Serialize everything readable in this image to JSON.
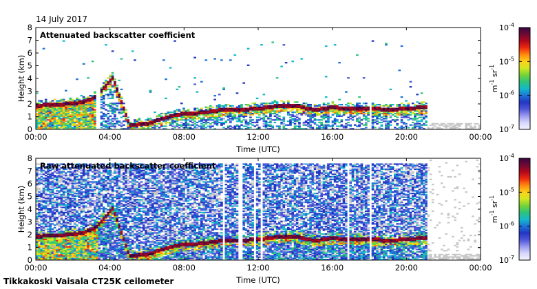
{
  "header": {
    "date": "14 July 2017"
  },
  "footer": {
    "station": "Tikkakoski Vaisala CT25K ceilometer"
  },
  "colors": {
    "noise": "#c8c8c8",
    "colorbar": [
      "#f4f4ff",
      "#d6d6fb",
      "#9a9af0",
      "#4d55d8",
      "#2436c4",
      "#1d74d6",
      "#14b9c9",
      "#2ec37a",
      "#74d338",
      "#d2e722",
      "#ffd21a",
      "#ff8a10",
      "#ee2a10",
      "#b0081c",
      "#6e0a35",
      "#3a0540"
    ]
  },
  "chart_data": [
    {
      "type": "heatmap",
      "title": "Attenuated backscatter coefficient",
      "xlabel": "Time (UTC)",
      "ylabel": "Height (km)",
      "xlim": [
        0,
        24
      ],
      "ylim": [
        0,
        8
      ],
      "xticks": [
        "00:00",
        "04:00",
        "08:00",
        "12:00",
        "16:00",
        "20:00",
        "00:00"
      ],
      "yticks": [
        "0",
        "1",
        "2",
        "3",
        "4",
        "5",
        "6",
        "7",
        "8"
      ],
      "colorbar": {
        "scale": "log",
        "range": [
          1e-07,
          0.0001
        ],
        "ticks": [
          "10",
          "10",
          "10",
          "10"
        ],
        "tick_exponents": [
          "-7",
          "-6",
          "-5",
          "-4"
        ],
        "label": "m",
        "label_exp1": "-1",
        "label_mid": " sr",
        "label_exp2": "-1"
      },
      "noise_floor": false,
      "layer_base_km": [
        [
          0.0,
          1.8
        ],
        [
          0.5,
          1.9
        ],
        [
          1.0,
          1.95
        ],
        [
          1.5,
          1.95
        ],
        [
          2.0,
          2.0
        ],
        [
          2.5,
          2.1
        ],
        [
          3.0,
          2.4
        ],
        [
          3.3,
          2.7
        ],
        [
          3.6,
          3.2
        ],
        [
          3.9,
          3.7
        ],
        [
          4.1,
          4.0
        ],
        [
          5.0,
          0.3
        ],
        [
          6.0,
          0.4
        ],
        [
          6.5,
          0.7
        ],
        [
          7.0,
          0.9
        ],
        [
          7.5,
          1.1
        ],
        [
          8.0,
          1.2
        ],
        [
          8.5,
          1.2
        ],
        [
          9.0,
          1.3
        ],
        [
          9.5,
          1.4
        ],
        [
          10.0,
          1.5
        ],
        [
          11.0,
          1.5
        ],
        [
          12.0,
          1.6
        ],
        [
          12.5,
          1.7
        ],
        [
          13.0,
          1.8
        ],
        [
          14.0,
          1.8
        ],
        [
          15.0,
          1.5
        ],
        [
          15.5,
          1.6
        ],
        [
          16.0,
          1.7
        ],
        [
          16.5,
          1.6
        ],
        [
          17.0,
          1.6
        ],
        [
          18.0,
          1.6
        ],
        [
          19.0,
          1.5
        ],
        [
          20.0,
          1.6
        ],
        [
          21.0,
          1.7
        ]
      ],
      "data_gaps_h": [
        [
          3.2,
          3.4
        ],
        [
          12.0,
          12.1
        ],
        [
          17.9,
          18.0
        ],
        [
          21.0,
          24.0
        ]
      ]
    },
    {
      "type": "heatmap",
      "title": "Raw attenuated backscatter coefficient",
      "xlabel": "Time (UTC)",
      "ylabel": "Height (km)",
      "xlim": [
        0,
        24
      ],
      "ylim": [
        0,
        8
      ],
      "xticks": [
        "00:00",
        "04:00",
        "08:00",
        "12:00",
        "16:00",
        "20:00",
        "00:00"
      ],
      "yticks": [
        "0",
        "1",
        "2",
        "3",
        "4",
        "5",
        "6",
        "7",
        "8"
      ],
      "colorbar": {
        "scale": "log",
        "range": [
          1e-07,
          0.0001
        ],
        "ticks": [
          "10",
          "10",
          "10",
          "10"
        ],
        "tick_exponents": [
          "-7",
          "-6",
          "-5",
          "-4"
        ],
        "label": "m",
        "label_exp1": "-1",
        "label_mid": " sr",
        "label_exp2": "-1"
      },
      "noise_floor": true,
      "layer_base_km": [
        [
          0.0,
          1.8
        ],
        [
          0.5,
          1.9
        ],
        [
          1.0,
          1.95
        ],
        [
          1.5,
          1.95
        ],
        [
          2.0,
          2.0
        ],
        [
          2.5,
          2.1
        ],
        [
          3.0,
          2.4
        ],
        [
          3.3,
          2.7
        ],
        [
          3.6,
          3.2
        ],
        [
          3.9,
          3.7
        ],
        [
          4.1,
          4.0
        ],
        [
          5.0,
          0.3
        ],
        [
          6.0,
          0.4
        ],
        [
          6.5,
          0.7
        ],
        [
          7.0,
          0.9
        ],
        [
          7.5,
          1.1
        ],
        [
          8.0,
          1.2
        ],
        [
          8.5,
          1.2
        ],
        [
          9.0,
          1.3
        ],
        [
          9.5,
          1.4
        ],
        [
          10.0,
          1.5
        ],
        [
          11.0,
          1.5
        ],
        [
          12.0,
          1.6
        ],
        [
          12.5,
          1.7
        ],
        [
          13.0,
          1.8
        ],
        [
          14.0,
          1.8
        ],
        [
          15.0,
          1.5
        ],
        [
          15.5,
          1.6
        ],
        [
          16.0,
          1.7
        ],
        [
          16.5,
          1.6
        ],
        [
          17.0,
          1.6
        ],
        [
          18.0,
          1.6
        ],
        [
          19.0,
          1.5
        ],
        [
          20.0,
          1.6
        ],
        [
          21.0,
          1.7
        ]
      ],
      "data_gaps_h": [
        [
          10.0,
          10.1
        ],
        [
          10.9,
          11.1
        ],
        [
          11.4,
          11.5
        ],
        [
          11.7,
          11.8
        ],
        [
          12.0,
          12.2
        ],
        [
          16.7,
          16.8
        ],
        [
          17.9,
          18.0
        ],
        [
          21.0,
          24.0
        ]
      ]
    }
  ]
}
